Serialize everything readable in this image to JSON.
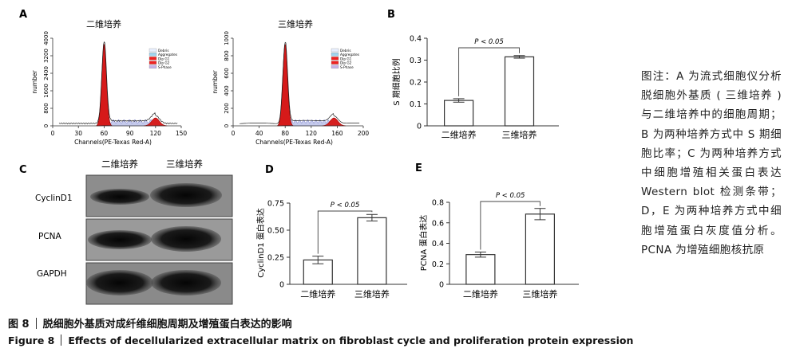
{
  "figure": {
    "note": "图注：A 为流式细胞仪分析脱细胞外基质 ( 三维培养 ) 与二维培养中的细胞周期；B 为两种培养方式中 S 期细胞比率；C 为两种培养方式中细胞增殖相关蛋白表达 Western blot 检测条带；D，E 为两种培养方式中细胞增殖蛋白灰度值分析。PCNA 为增殖细胞核抗原",
    "caption_zh_label": "图 8",
    "caption_zh": "脱细胞外基质对成纤维细胞周期及增殖蛋白表达的影响",
    "caption_en_label": "Figure 8",
    "caption_en": "Effects of decellularized extracellular matrix on fibroblast cycle and proliferation protein expression"
  },
  "panel_a": {
    "letter": "A",
    "ylabel": "number",
    "xlabel": "Channels(PE-Texas Red-A)",
    "legend": [
      "Debris",
      "Aggregates",
      "Dip G1",
      "Dip G2",
      "S-Phase"
    ],
    "histograms": [
      {
        "title": "二维培养",
        "xticks": [
          "0",
          "30",
          "60",
          "90",
          "120",
          "150"
        ],
        "yticks": [
          "0",
          "800",
          "1600",
          "2400",
          "3200",
          "4000"
        ],
        "g1_peak_channel": 60,
        "g2_peak_channel": 120
      },
      {
        "title": "三维培养",
        "xticks": [
          "0",
          "40",
          "80",
          "120",
          "160",
          "200"
        ],
        "yticks": [
          "0",
          "200",
          "400",
          "600",
          "800",
          "1000"
        ],
        "g1_peak_channel": 80,
        "g2_peak_channel": 155
      }
    ]
  },
  "blot": {
    "letter": "C",
    "lanes": [
      "二维培养",
      "三维培养"
    ],
    "rows": [
      "CyclinD1",
      "PCNA",
      "GAPDH"
    ]
  },
  "chart_data": [
    {
      "panel": "B",
      "type": "bar",
      "categories": [
        "二维培养",
        "三维培养"
      ],
      "values": [
        0.116,
        0.315
      ],
      "errors": [
        0.008,
        0.006
      ],
      "ylabel": "S 期细胞比例",
      "ylim": [
        0,
        0.4
      ],
      "yticks": [
        "0",
        "0.1",
        "0.2",
        "0.3",
        "0.4"
      ],
      "annotation": "P < 0.05"
    },
    {
      "panel": "D",
      "type": "bar",
      "categories": [
        "二维培养",
        "三维培养"
      ],
      "values": [
        0.225,
        0.615
      ],
      "errors": [
        0.035,
        0.03
      ],
      "ylabel": "CyclinD1 蛋白表达",
      "ylim": [
        0,
        0.75
      ],
      "yticks": [
        "0",
        "0.25",
        "0.50",
        "0.75"
      ],
      "annotation": "P < 0.05"
    },
    {
      "panel": "E",
      "type": "bar",
      "categories": [
        "二维培养",
        "三维培养"
      ],
      "values": [
        0.29,
        0.685
      ],
      "errors": [
        0.025,
        0.055
      ],
      "ylabel": "PCNA 蛋白表达",
      "ylim": [
        0,
        0.8
      ],
      "yticks": [
        "0",
        "0.2",
        "0.4",
        "0.6",
        "0.8"
      ],
      "annotation": "P < 0.05"
    }
  ]
}
